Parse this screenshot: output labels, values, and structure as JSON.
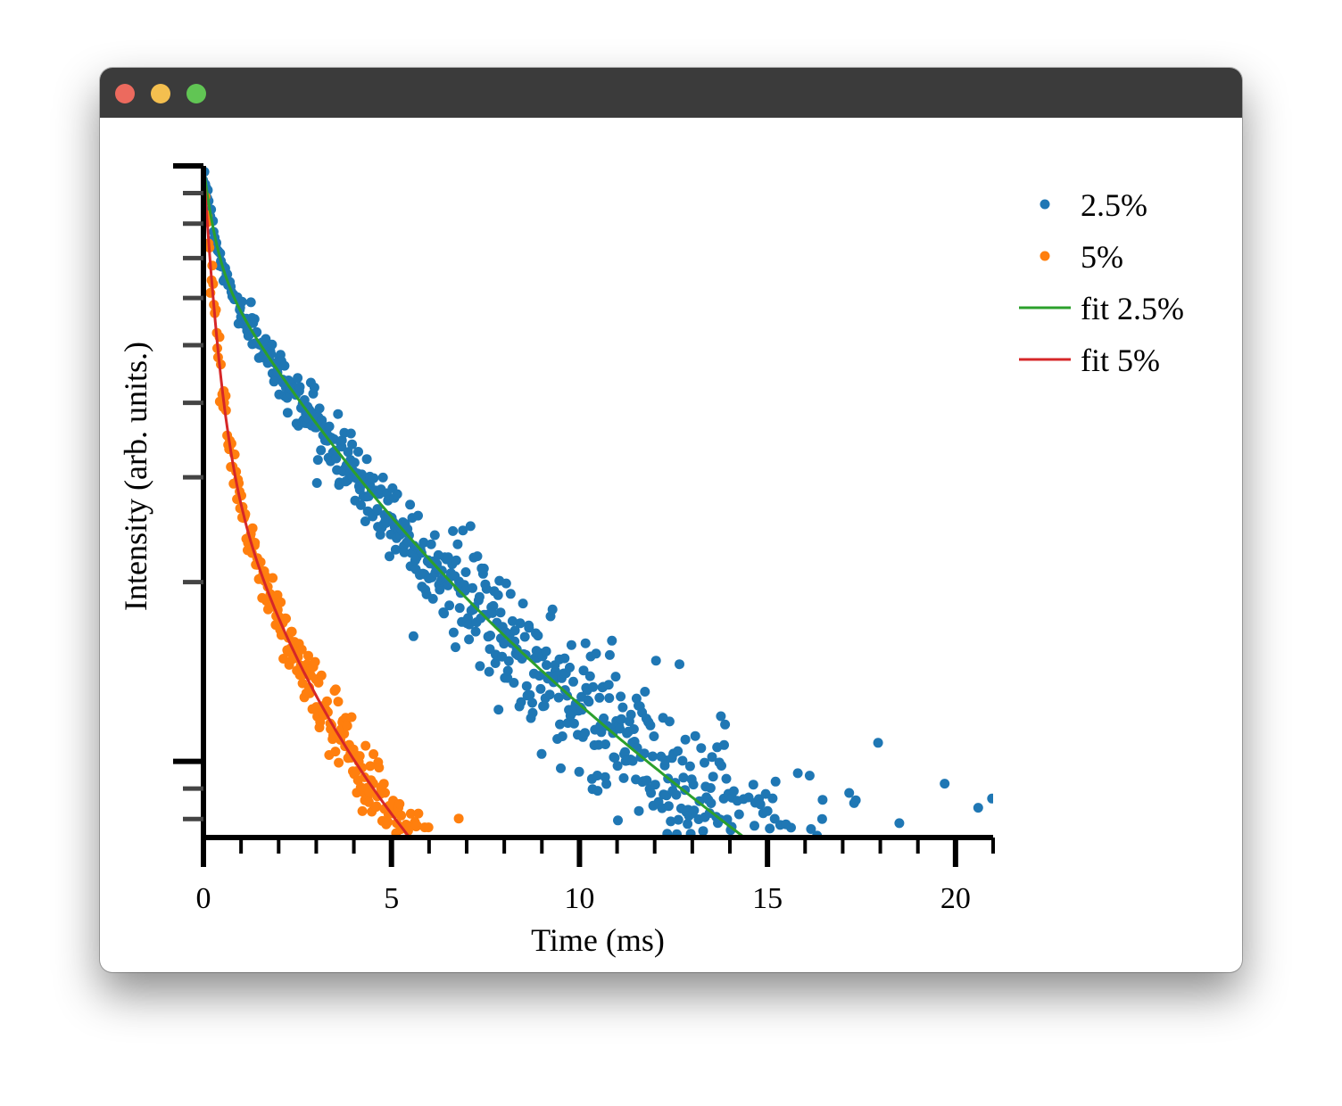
{
  "window": {
    "controls": [
      "close",
      "minimize",
      "zoom"
    ]
  },
  "chart_data": {
    "type": "scatter",
    "xlabel": "Time (ms)",
    "ylabel": "Intensity (arb. units.)",
    "xlim": [
      0,
      21
    ],
    "x_scale": "linear",
    "y_scale": "log",
    "ylim": [
      0.075,
      1.0
    ],
    "xticks": [
      0,
      5,
      10,
      15,
      20
    ],
    "xtick_labels": [
      "0",
      "5",
      "10",
      "15",
      "20"
    ],
    "y_major_ticks": [
      0.1,
      1.0
    ],
    "yticks_labeled": false,
    "grid": false,
    "legend_position": "top-right",
    "legend": [
      "2.5%",
      "5%",
      "fit 2.5%",
      "fit 5%"
    ],
    "series": [
      {
        "name": "2.5%",
        "kind": "points",
        "color": "#1f77b4",
        "model": {
          "a1": 0.3,
          "tau1": 0.3,
          "a2": 0.4,
          "tau2": 3.0,
          "a3": 0.3,
          "tau3": 10.0
        },
        "noise": {
          "base": 0.02,
          "growth": 0.012
        },
        "x_range": [
          0,
          21
        ],
        "n_points": 900
      },
      {
        "name": "5%",
        "kind": "points",
        "color": "#ff7f0e",
        "model": {
          "a1": 0.62,
          "tau1": 0.3,
          "a2": 0.23,
          "tau2": 1.5,
          "a3": 0.15,
          "tau3": 7.0
        },
        "noise": {
          "base": 0.04,
          "growth": 0.007
        },
        "x_range": [
          0,
          21
        ],
        "n_points": 900
      },
      {
        "name": "fit 2.5%",
        "kind": "line",
        "color": "#2ca02c",
        "model": {
          "a1": 0.3,
          "tau1": 0.3,
          "a2": 0.4,
          "tau2": 3.0,
          "a3": 0.3,
          "tau3": 10.0
        }
      },
      {
        "name": "fit 5%",
        "kind": "line",
        "color": "#d62728",
        "model": {
          "a1": 0.62,
          "tau1": 0.3,
          "a2": 0.23,
          "tau2": 1.5,
          "a3": 0.15,
          "tau3": 7.0
        }
      }
    ]
  }
}
